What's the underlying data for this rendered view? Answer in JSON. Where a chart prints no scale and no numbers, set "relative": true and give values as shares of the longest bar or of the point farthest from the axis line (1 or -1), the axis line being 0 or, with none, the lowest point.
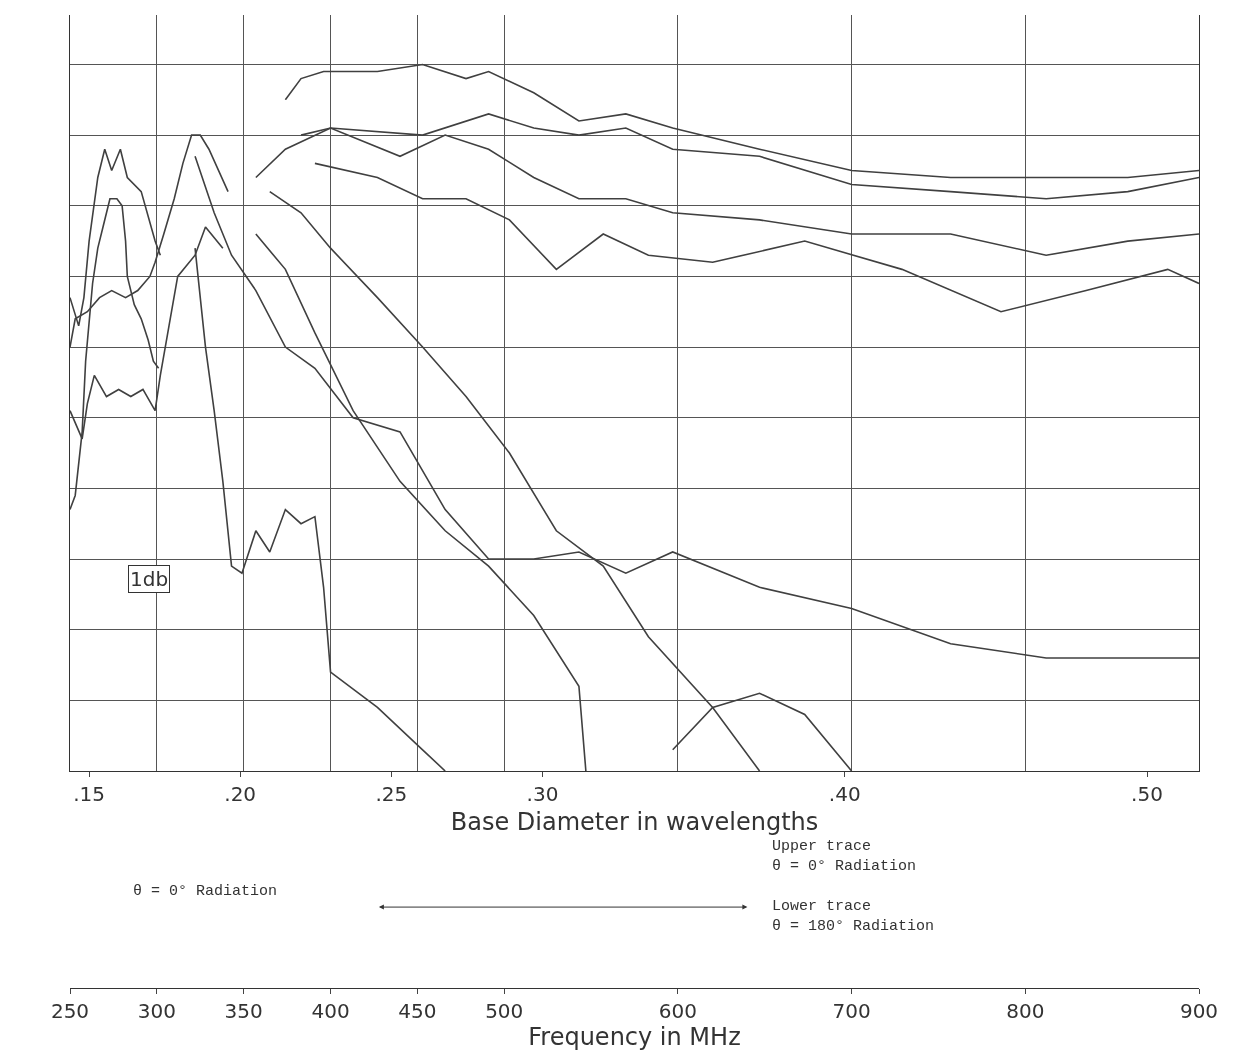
{
  "chart_data": {
    "type": "line",
    "relative": true,
    "marker": "none",
    "line_style": "solid",
    "grid": true,
    "xlabel": "Frequency in MHz",
    "x2label": "Base Diameter in wavelengths",
    "xlim": [
      250,
      900
    ],
    "xticks": [
      250,
      300,
      350,
      400,
      450,
      500,
      600,
      700,
      800,
      900
    ],
    "x2lim": [
      0.1437,
      0.5172
    ],
    "x2ticks": [
      {
        "value": 0.15,
        "label": ".15"
      },
      {
        "value": 0.2,
        "label": ".20"
      },
      {
        "value": 0.25,
        "label": ".25"
      },
      {
        "value": 0.3,
        "label": ".30"
      },
      {
        "value": 0.4,
        "label": ".40"
      },
      {
        "value": 0.5,
        "label": ".50"
      }
    ],
    "annotations": [
      "1db",
      "θ = 0° Radiation",
      "Upper trace\nθ = 0° Radiation",
      "Lower trace\nθ = 180° Radiation"
    ],
    "series": [
      {
        "color": "#404040",
        "x": [
          374,
          383,
          396,
          427,
          453,
          478,
          491,
          517,
          543,
          570,
          597,
          647,
          700,
          757,
          812,
          859,
          900
        ],
        "values": [
          0.95,
          0.98,
          0.99,
          0.99,
          1.0,
          0.98,
          0.99,
          0.96,
          0.92,
          0.93,
          0.91,
          0.88,
          0.85,
          0.84,
          0.84,
          0.84,
          0.85
        ]
      },
      {
        "color": "#404040",
        "x": [
          357,
          374,
          400,
          453,
          491,
          517,
          543,
          570,
          597,
          647,
          700,
          757,
          812,
          859,
          900
        ],
        "values": [
          0.84,
          0.88,
          0.91,
          0.9,
          0.93,
          0.91,
          0.9,
          0.91,
          0.88,
          0.87,
          0.83,
          0.82,
          0.81,
          0.82,
          0.84
        ]
      },
      {
        "color": "#404040",
        "x": [
          383,
          400,
          440,
          466,
          491,
          517,
          543,
          570,
          597,
          647,
          700,
          757,
          812,
          859,
          900
        ],
        "values": [
          0.9,
          0.91,
          0.87,
          0.9,
          0.88,
          0.84,
          0.81,
          0.81,
          0.79,
          0.78,
          0.76,
          0.76,
          0.73,
          0.75,
          0.76
        ]
      },
      {
        "color": "#404040",
        "x": [
          391,
          427,
          453,
          478,
          503,
          530,
          557,
          583,
          620,
          673,
          729,
          786,
          835,
          882,
          900
        ],
        "values": [
          0.86,
          0.84,
          0.81,
          0.81,
          0.78,
          0.71,
          0.76,
          0.73,
          0.72,
          0.75,
          0.71,
          0.65,
          0.68,
          0.71,
          0.69
        ]
      },
      {
        "color": "#404040",
        "x": [
          365,
          383,
          400,
          427,
          453,
          478,
          503,
          530,
          557,
          583,
          620,
          647
        ],
        "values": [
          0.82,
          0.79,
          0.74,
          0.67,
          0.6,
          0.53,
          0.45,
          0.34,
          0.29,
          0.19,
          0.09,
          0
        ]
      },
      {
        "color": "#404040",
        "x": [
          357,
          374,
          391,
          413,
          440,
          466,
          491,
          517,
          543,
          547
        ],
        "values": [
          0.76,
          0.71,
          0.62,
          0.51,
          0.41,
          0.34,
          0.29,
          0.22,
          0.12,
          0
        ]
      },
      {
        "color": "#404040",
        "x": [
          322,
          333,
          343,
          357,
          374,
          391,
          413,
          440,
          466,
          491,
          517,
          543,
          570,
          597,
          647,
          700,
          757,
          812,
          859,
          900
        ],
        "values": [
          0.87,
          0.79,
          0.73,
          0.68,
          0.6,
          0.57,
          0.5,
          0.48,
          0.37,
          0.3,
          0.3,
          0.31,
          0.28,
          0.31,
          0.26,
          0.23,
          0.18,
          0.16,
          0.16,
          0.16
        ]
      },
      {
        "color": "#404040",
        "x": [
          322,
          328,
          333,
          338,
          343,
          349,
          357,
          365,
          374,
          383,
          391,
          396,
          400,
          427,
          453,
          466
        ],
        "values": [
          0.74,
          0.6,
          0.51,
          0.41,
          0.29,
          0.28,
          0.34,
          0.31,
          0.37,
          0.35,
          0.36,
          0.26,
          0.14,
          0.09,
          0.03,
          0
        ]
      },
      {
        "color": "#404040",
        "x": [
          597,
          620,
          647,
          673,
          700
        ],
        "values": [
          0.03,
          0.09,
          0.11,
          0.08,
          0
        ]
      },
      {
        "color": "#404040",
        "x": [
          250,
          253,
          260,
          267,
          274,
          282,
          289,
          296,
          299,
          304,
          310,
          315,
          320,
          325,
          330,
          341
        ],
        "values": [
          0.6,
          0.64,
          0.65,
          0.67,
          0.68,
          0.67,
          0.68,
          0.7,
          0.72,
          0.76,
          0.81,
          0.86,
          0.9,
          0.9,
          0.88,
          0.82
        ]
      },
      {
        "color": "#404040",
        "x": [
          250,
          257,
          260,
          264,
          271,
          278,
          285,
          292,
          299,
          302,
          307,
          312,
          322,
          328,
          338
        ],
        "values": [
          0.51,
          0.47,
          0.52,
          0.56,
          0.53,
          0.54,
          0.53,
          0.54,
          0.51,
          0.56,
          0.63,
          0.7,
          0.73,
          0.77,
          0.74
        ]
      },
      {
        "color": "#404040",
        "x": [
          250,
          255,
          258,
          261,
          266,
          270,
          274,
          279,
          283,
          291,
          299,
          302
        ],
        "values": [
          0.67,
          0.63,
          0.67,
          0.75,
          0.84,
          0.88,
          0.85,
          0.88,
          0.84,
          0.82,
          0.75,
          0.73
        ]
      },
      {
        "color": "#404040",
        "x": [
          250,
          253,
          257,
          259,
          263,
          266,
          269,
          273,
          277,
          280,
          282,
          283,
          287,
          291,
          295,
          298,
          301
        ],
        "values": [
          0.37,
          0.39,
          0.48,
          0.58,
          0.69,
          0.74,
          0.77,
          0.81,
          0.81,
          0.8,
          0.75,
          0.7,
          0.66,
          0.64,
          0.61,
          0.58,
          0.57
        ]
      }
    ]
  }
}
